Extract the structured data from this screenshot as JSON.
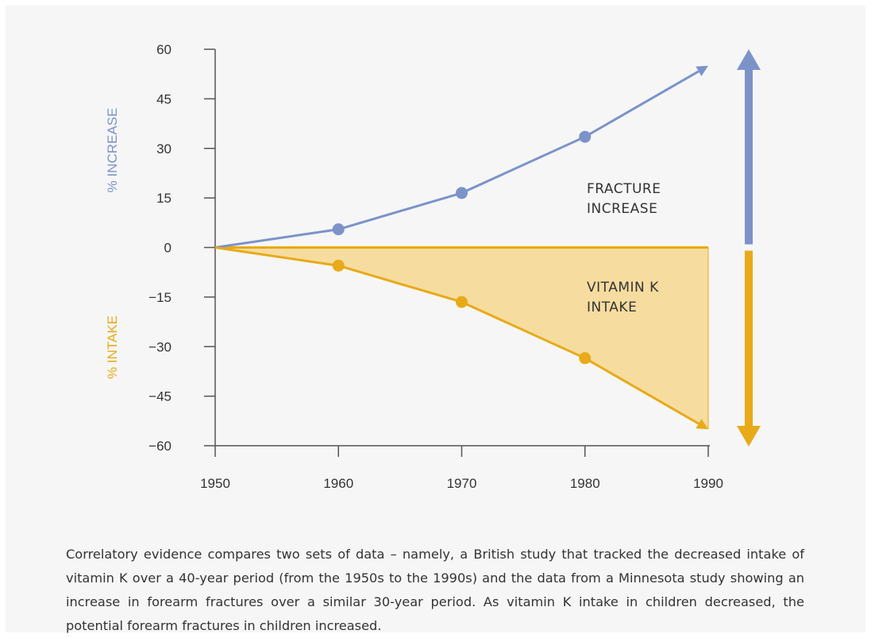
{
  "chart_data": {
    "type": "line",
    "x": [
      1950,
      1960,
      1970,
      1980,
      1990
    ],
    "x_ticks": [
      "1950",
      "1960",
      "1970",
      "1980",
      "1990"
    ],
    "xlim": [
      1950,
      1990
    ],
    "ylim": [
      -60,
      60
    ],
    "y_ticks": [
      60,
      45,
      30,
      15,
      0,
      -15,
      -30,
      -45,
      -60
    ],
    "y_tick_labels": [
      "60",
      "45",
      "30",
      "15",
      "0",
      "−15",
      "−30",
      "−45",
      "−60"
    ],
    "ylabel_top": "% INCREASE",
    "ylabel_bottom": "% INTAKE",
    "series": [
      {
        "name": "Fracture increase",
        "color": "#7b93c9",
        "values": [
          0,
          5.5,
          16.5,
          33.5,
          55
        ],
        "area_fill": false
      },
      {
        "name": "Vitamin K intake",
        "color": "#e8aa19",
        "values": [
          0,
          -5.5,
          -16.5,
          -33.5,
          -55
        ],
        "area_fill": true,
        "fill_color": "#f6dc9f"
      }
    ],
    "annotations": {
      "fracture": [
        "FRACTURE",
        "INCREASE"
      ],
      "vitamin": [
        "VITAMIN K",
        "INTAKE"
      ]
    }
  },
  "caption": "Correlatory evidence compares two sets of data – namely, a British study that tracked the decreased intake of vitamin K over a 40-year period (from the 1950s to the 1990s) and the data from a Minnesota study showing an increase in forearm fractures over a similar 30-year period. As vitamin K intake in children decreased, the potential forearm fractures in children increased."
}
